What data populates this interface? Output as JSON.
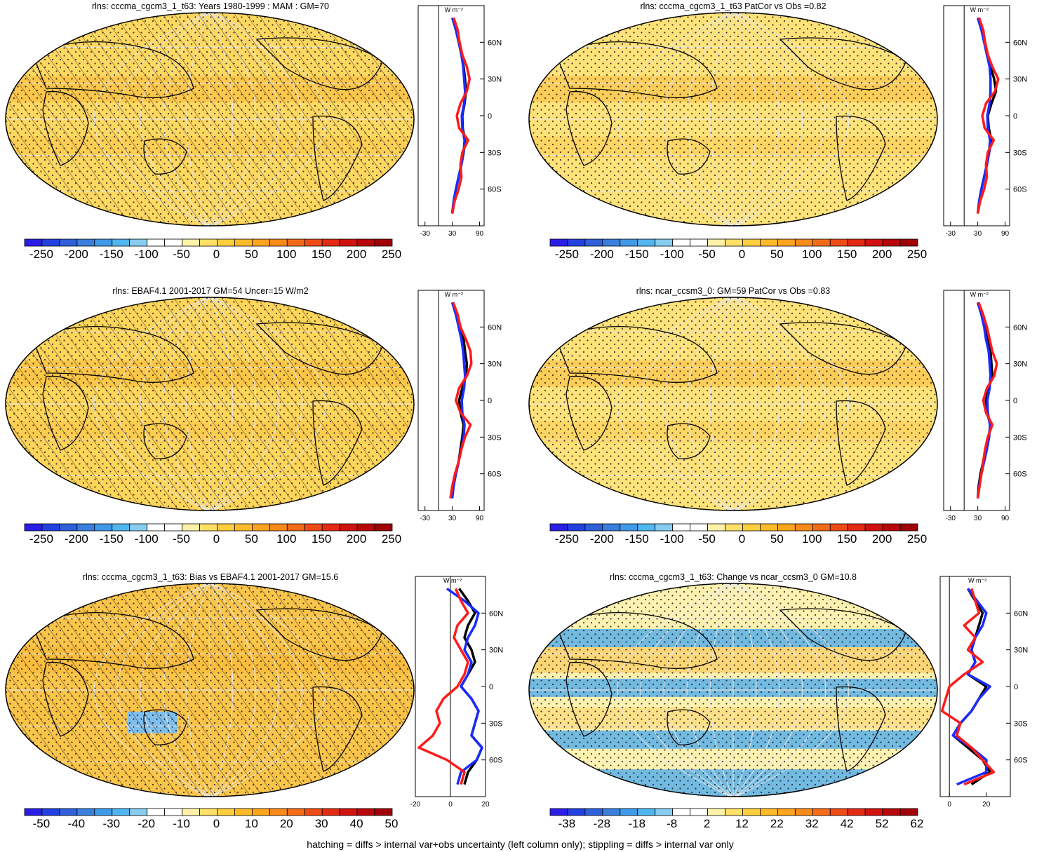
{
  "footer": "hatching = diffs > internal var+obs uncertainty (left column only); stippling = diffs > internal var only",
  "colorbar_main": {
    "labels": [
      "-250",
      "-200",
      "-150",
      "-100",
      "-50",
      "0",
      "50",
      "100",
      "150",
      "200",
      "250"
    ],
    "colors": [
      "#2a1ee6",
      "#2340e0",
      "#2f5fd9",
      "#3a7fde",
      "#3f9ae8",
      "#4fb6f0",
      "#86cdf0",
      "#ffffff",
      "#ffffff",
      "#fff2a8",
      "#ffe066",
      "#ffce3d",
      "#fdbb2a",
      "#fca41e",
      "#f88a1a",
      "#f46c17",
      "#ee4b16",
      "#e32b14",
      "#d1120f",
      "#b8060a",
      "#a00008"
    ]
  },
  "colorbar_bias": {
    "labels": [
      "-50",
      "-40",
      "-30",
      "-20",
      "-10",
      "0",
      "10",
      "20",
      "30",
      "40",
      "50"
    ],
    "colors": [
      "#2a1ee6",
      "#2340e0",
      "#2f5fd9",
      "#3a7fde",
      "#3f9ae8",
      "#4fb6f0",
      "#86cdf0",
      "#ffffff",
      "#ffffff",
      "#fff2a8",
      "#ffe066",
      "#ffce3d",
      "#fdbb2a",
      "#fca41e",
      "#f88a1a",
      "#f46c17",
      "#ee4b16",
      "#e32b14",
      "#d1120f",
      "#b8060a",
      "#a00008"
    ]
  },
  "colorbar_change": {
    "labels": [
      "-38",
      "-28",
      "-18",
      "-8",
      "2",
      "12",
      "22",
      "32",
      "42",
      "52",
      "62"
    ],
    "colors": [
      "#2a1ee6",
      "#2340e0",
      "#2f5fd9",
      "#3a7fde",
      "#3f9ae8",
      "#4fb6f0",
      "#86cdf0",
      "#ffffff",
      "#ffffff",
      "#fff2a8",
      "#ffe066",
      "#ffce3d",
      "#fdbb2a",
      "#fca41e",
      "#f88a1a",
      "#f46c17",
      "#ee4b16",
      "#e32b14",
      "#d1120f",
      "#b8060a",
      "#a00008"
    ]
  },
  "lat_ticks": [
    "60N",
    "30N",
    "0",
    "30S",
    "60S"
  ],
  "profile_unit": "W m⁻²",
  "chart_data": [
    {
      "type": "heatmap",
      "title": "rlns: cccma_cgcm3_1_t63: Years 1980-1999 : MAM : GM=70",
      "map_fill": "#ffd861",
      "hatching": true,
      "profile": {
        "xticks": [
          "-30",
          "30",
          "90"
        ],
        "xlim": [
          -45,
          100
        ],
        "zero": 0,
        "series": [
          {
            "color": "#000000",
            "lat": [
              80,
              70,
              60,
              50,
              40,
              30,
              20,
              10,
              0,
              -10,
              -20,
              -30,
              -40,
              -50,
              -60,
              -70,
              -80
            ],
            "values": [
              32,
              40,
              45,
              50,
              55,
              58,
              60,
              57,
              52,
              53,
              58,
              55,
              50,
              44,
              38,
              33,
              30
            ]
          },
          {
            "color": "#1a2bff",
            "lat": [
              80,
              70,
              60,
              50,
              40,
              30,
              20,
              10,
              0,
              -10,
              -20,
              -30,
              -40,
              -50,
              -60,
              -70,
              -80
            ],
            "values": [
              30,
              38,
              44,
              50,
              54,
              56,
              58,
              56,
              51,
              52,
              57,
              55,
              50,
              44,
              38,
              33,
              30
            ]
          },
          {
            "color": "#ff1a1a",
            "lat": [
              80,
              70,
              60,
              50,
              40,
              30,
              20,
              10,
              0,
              -10,
              -20,
              -30,
              -40,
              -50,
              -60,
              -70,
              -80
            ],
            "values": [
              33,
              42,
              46,
              52,
              62,
              68,
              62,
              48,
              40,
              45,
              65,
              52,
              48,
              50,
              44,
              35,
              30
            ]
          }
        ]
      }
    },
    {
      "type": "heatmap",
      "title": "rlns: cccma_cgcm3_1_t63 PatCor vs Obs =0.82",
      "map_fill": "#ffe27a",
      "hatching": false,
      "profile": {
        "xticks": [
          "-30",
          "30",
          "90"
        ],
        "xlim": [
          -45,
          100
        ],
        "zero": 0,
        "series": [
          {
            "color": "#000000",
            "lat": [
              80,
              70,
              60,
              50,
              40,
              30,
              20,
              10,
              0,
              -10,
              -20,
              -30,
              -40,
              -50,
              -60,
              -70,
              -80
            ],
            "values": [
              32,
              40,
              45,
              50,
              58,
              66,
              70,
              60,
              52,
              54,
              60,
              55,
              50,
              44,
              38,
              33,
              30
            ]
          },
          {
            "color": "#1a2bff",
            "lat": [
              80,
              70,
              60,
              50,
              40,
              30,
              20,
              10,
              0,
              -10,
              -20,
              -30,
              -40,
              -50,
              -60,
              -70,
              -80
            ],
            "values": [
              30,
              38,
              44,
              50,
              56,
              58,
              58,
              56,
              51,
              52,
              57,
              55,
              50,
              44,
              38,
              33,
              30
            ]
          },
          {
            "color": "#ff1a1a",
            "lat": [
              80,
              70,
              60,
              50,
              40,
              30,
              20,
              10,
              0,
              -10,
              -20,
              -30,
              -40,
              -50,
              -60,
              -70,
              -80
            ],
            "values": [
              33,
              42,
              46,
              52,
              62,
              75,
              68,
              48,
              40,
              45,
              65,
              52,
              48,
              50,
              44,
              35,
              30
            ]
          }
        ]
      }
    },
    {
      "type": "heatmap",
      "title": "rlns: EBAF4.1 2001-2017 GM=54 Uncer=15 W/m2",
      "map_fill": "#ffd55a",
      "hatching": true,
      "profile": {
        "xticks": [
          "-30",
          "30",
          "90"
        ],
        "xlim": [
          -45,
          100
        ],
        "zero": 0,
        "series": [
          {
            "color": "#000000",
            "lat": [
              80,
              70,
              60,
              50,
              40,
              30,
              20,
              10,
              0,
              -10,
              -20,
              -30,
              -40,
              -50,
              -60,
              -70,
              -80
            ],
            "values": [
              30,
              40,
              48,
              55,
              58,
              62,
              60,
              52,
              45,
              48,
              55,
              52,
              48,
              44,
              38,
              32,
              28
            ]
          },
          {
            "color": "#1a2bff",
            "lat": [
              80,
              70,
              60,
              50,
              40,
              30,
              20,
              10,
              0,
              -10,
              -20,
              -30,
              -40,
              -50,
              -60,
              -70,
              -80
            ],
            "values": [
              30,
              38,
              44,
              50,
              54,
              56,
              58,
              56,
              51,
              52,
              57,
              55,
              50,
              44,
              38,
              33,
              30
            ]
          },
          {
            "color": "#ff1a1a",
            "lat": [
              80,
              70,
              60,
              50,
              40,
              30,
              20,
              10,
              0,
              -10,
              -20,
              -30,
              -40,
              -50,
              -60,
              -70,
              -80
            ],
            "values": [
              32,
              42,
              48,
              60,
              70,
              72,
              62,
              45,
              38,
              48,
              70,
              58,
              50,
              44,
              36,
              30,
              26
            ]
          }
        ]
      }
    },
    {
      "type": "heatmap",
      "title": "rlns: ncar_ccsm3_0: GM=59 PatCor vs Obs =0.83",
      "map_fill": "#ffe27a",
      "hatching": false,
      "profile": {
        "xticks": [
          "-30",
          "30",
          "90"
        ],
        "xlim": [
          -45,
          100
        ],
        "zero": 0,
        "series": [
          {
            "color": "#000000",
            "lat": [
              80,
              70,
              60,
              50,
              40,
              30,
              20,
              10,
              0,
              -10,
              -20,
              -30,
              -40,
              -50,
              -60,
              -70,
              -80
            ],
            "values": [
              30,
              40,
              48,
              52,
              58,
              60,
              62,
              54,
              48,
              50,
              58,
              54,
              48,
              42,
              36,
              32,
              30
            ]
          },
          {
            "color": "#1a2bff",
            "lat": [
              80,
              70,
              60,
              50,
              40,
              30,
              20,
              10,
              0,
              -10,
              -20,
              -30,
              -40,
              -50,
              -60,
              -70,
              -80
            ],
            "values": [
              30,
              38,
              44,
              48,
              54,
              56,
              58,
              56,
              51,
              52,
              57,
              55,
              50,
              44,
              38,
              33,
              30
            ]
          },
          {
            "color": "#ff1a1a",
            "lat": [
              80,
              70,
              60,
              50,
              40,
              30,
              20,
              10,
              0,
              -10,
              -20,
              -30,
              -40,
              -50,
              -60,
              -70,
              -80
            ],
            "values": [
              32,
              42,
              50,
              56,
              62,
              72,
              66,
              50,
              42,
              48,
              62,
              52,
              46,
              42,
              38,
              34,
              30
            ]
          }
        ]
      }
    },
    {
      "type": "heatmap",
      "title": "rlns: cccma_cgcm3_1_t63: Bias vs EBAF4.1 2001-2017 GM=15.6",
      "map_fill": "#fbc54a",
      "hatching": true,
      "profile": {
        "xticks": [
          "-20",
          "0",
          "20"
        ],
        "xlim": [
          -20,
          20
        ],
        "zero": 0,
        "series": [
          {
            "color": "#000000",
            "lat": [
              80,
              70,
              60,
              50,
              40,
              30,
              20,
              10,
              0,
              -10,
              -20,
              -30,
              -40,
              -50,
              -60,
              -70,
              -80
            ],
            "values": [
              5,
              10,
              14,
              10,
              8,
              12,
              14,
              10,
              6,
              12,
              16,
              14,
              12,
              18,
              15,
              10,
              8
            ]
          },
          {
            "color": "#1a2bff",
            "lat": [
              80,
              70,
              60,
              50,
              40,
              30,
              20,
              10,
              0,
              -10,
              -20,
              -30,
              -40,
              -50,
              -60,
              -70,
              -80
            ],
            "values": [
              -2,
              8,
              16,
              14,
              10,
              8,
              12,
              10,
              6,
              12,
              16,
              14,
              12,
              18,
              15,
              6,
              4
            ]
          },
          {
            "color": "#ff1a1a",
            "lat": [
              80,
              70,
              60,
              50,
              40,
              30,
              20,
              10,
              0,
              -10,
              -20,
              -30,
              -40,
              -50,
              -60,
              -70,
              -80
            ],
            "values": [
              3,
              6,
              10,
              4,
              2,
              6,
              10,
              8,
              4,
              -4,
              -8,
              -6,
              -10,
              -18,
              -2,
              8,
              6
            ]
          }
        ]
      }
    },
    {
      "type": "heatmap",
      "title": "rlns: cccma_cgcm3_1_t63: Change vs ncar_ccsm3_0 GM=10.8",
      "map_fill": "#fff2b0",
      "hatching": false,
      "profile": {
        "xticks": [
          "0",
          "20"
        ],
        "xlim": [
          -5,
          33
        ],
        "zero": 0,
        "series": [
          {
            "color": "#000000",
            "lat": [
              80,
              70,
              60,
              50,
              40,
              30,
              20,
              10,
              0,
              -10,
              -20,
              -30,
              -40,
              -50,
              -60,
              -70,
              -80
            ],
            "values": [
              10,
              14,
              18,
              16,
              14,
              12,
              14,
              10,
              20,
              16,
              12,
              6,
              2,
              10,
              18,
              22,
              12
            ]
          },
          {
            "color": "#1a2bff",
            "lat": [
              80,
              70,
              60,
              50,
              40,
              30,
              20,
              10,
              0,
              -10,
              -20,
              -30,
              -40,
              -50,
              -60,
              -70,
              -80
            ],
            "values": [
              10,
              15,
              20,
              18,
              14,
              12,
              14,
              10,
              22,
              16,
              12,
              6,
              2,
              12,
              20,
              20,
              4
            ]
          },
          {
            "color": "#ff1a1a",
            "lat": [
              80,
              70,
              60,
              50,
              40,
              30,
              20,
              10,
              0,
              -10,
              -20,
              -30,
              -40,
              -50,
              -60,
              -70,
              -80
            ],
            "values": [
              12,
              14,
              16,
              8,
              14,
              10,
              18,
              8,
              0,
              -2,
              -4,
              6,
              4,
              12,
              18,
              24,
              8
            ]
          }
        ]
      }
    }
  ]
}
